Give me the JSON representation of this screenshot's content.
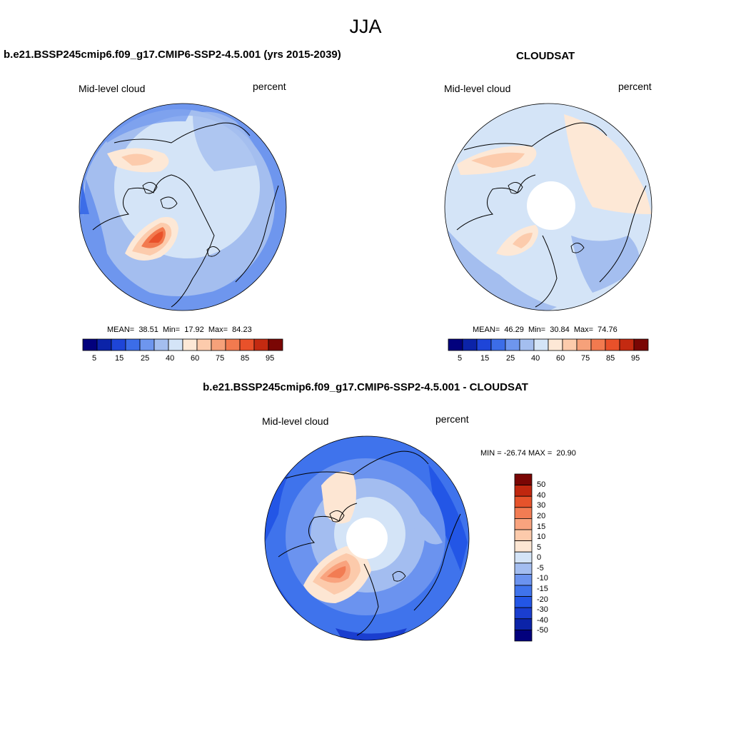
{
  "suptitle": "JJA",
  "colors": {
    "scale": [
      "#02017d",
      "#0b23a8",
      "#1e45d8",
      "#3c6de8",
      "#6e96ee",
      "#a4beef",
      "#d4e4f7",
      "#fde8d6",
      "#fccbac",
      "#f6a17a",
      "#f27a4f",
      "#e9512a",
      "#c42a11",
      "#7a0604"
    ],
    "diff_scale": [
      "#02017d",
      "#0b23a8",
      "#1a3ecf",
      "#2356e6",
      "#3f73ec",
      "#6b93ef",
      "#a3bdf0",
      "#d4e4f7",
      "#fde6d3",
      "#fccaab",
      "#f9a37e",
      "#f27c53",
      "#e6532b",
      "#c0270f",
      "#7a0604"
    ],
    "coast": "#000000",
    "hole": "#ffffff"
  },
  "panels": [
    {
      "id": "model",
      "title": "b.e21.BSSP245cmip6.f09_g17.CMIP6-SSP2-4.5.001 (yrs 2015-2039)",
      "left_label": "Mid-level cloud",
      "right_label": "percent",
      "stats": "MEAN=  38.51  Min=  17.92  Max=  84.23",
      "mean": 38.51,
      "min": 17.92,
      "max": 84.23
    },
    {
      "id": "obs",
      "title": "CLOUDSAT",
      "left_label": "Mid-level cloud",
      "right_label": "percent",
      "stats": "MEAN=  46.29  Min=  30.84  Max=  74.76",
      "mean": 46.29,
      "min": 30.84,
      "max": 74.76
    },
    {
      "id": "diff",
      "title": "b.e21.BSSP245cmip6.f09_g17.CMIP6-SSP2-4.5.001 - CLOUDSAT",
      "left_label": "Mid-level cloud",
      "right_label": "percent",
      "stats": "MIN = -26.74 MAX =  20.90",
      "min": -26.74,
      "max": 20.9
    }
  ],
  "colorbar_ticks": [
    "5",
    "15",
    "25",
    "40",
    "60",
    "75",
    "85",
    "95"
  ],
  "diff_colorbar_ticks": [
    "50",
    "40",
    "30",
    "20",
    "15",
    "10",
    "5",
    "0",
    "-5",
    "-10",
    "-15",
    "-20",
    "-30",
    "-40",
    "-50"
  ]
}
